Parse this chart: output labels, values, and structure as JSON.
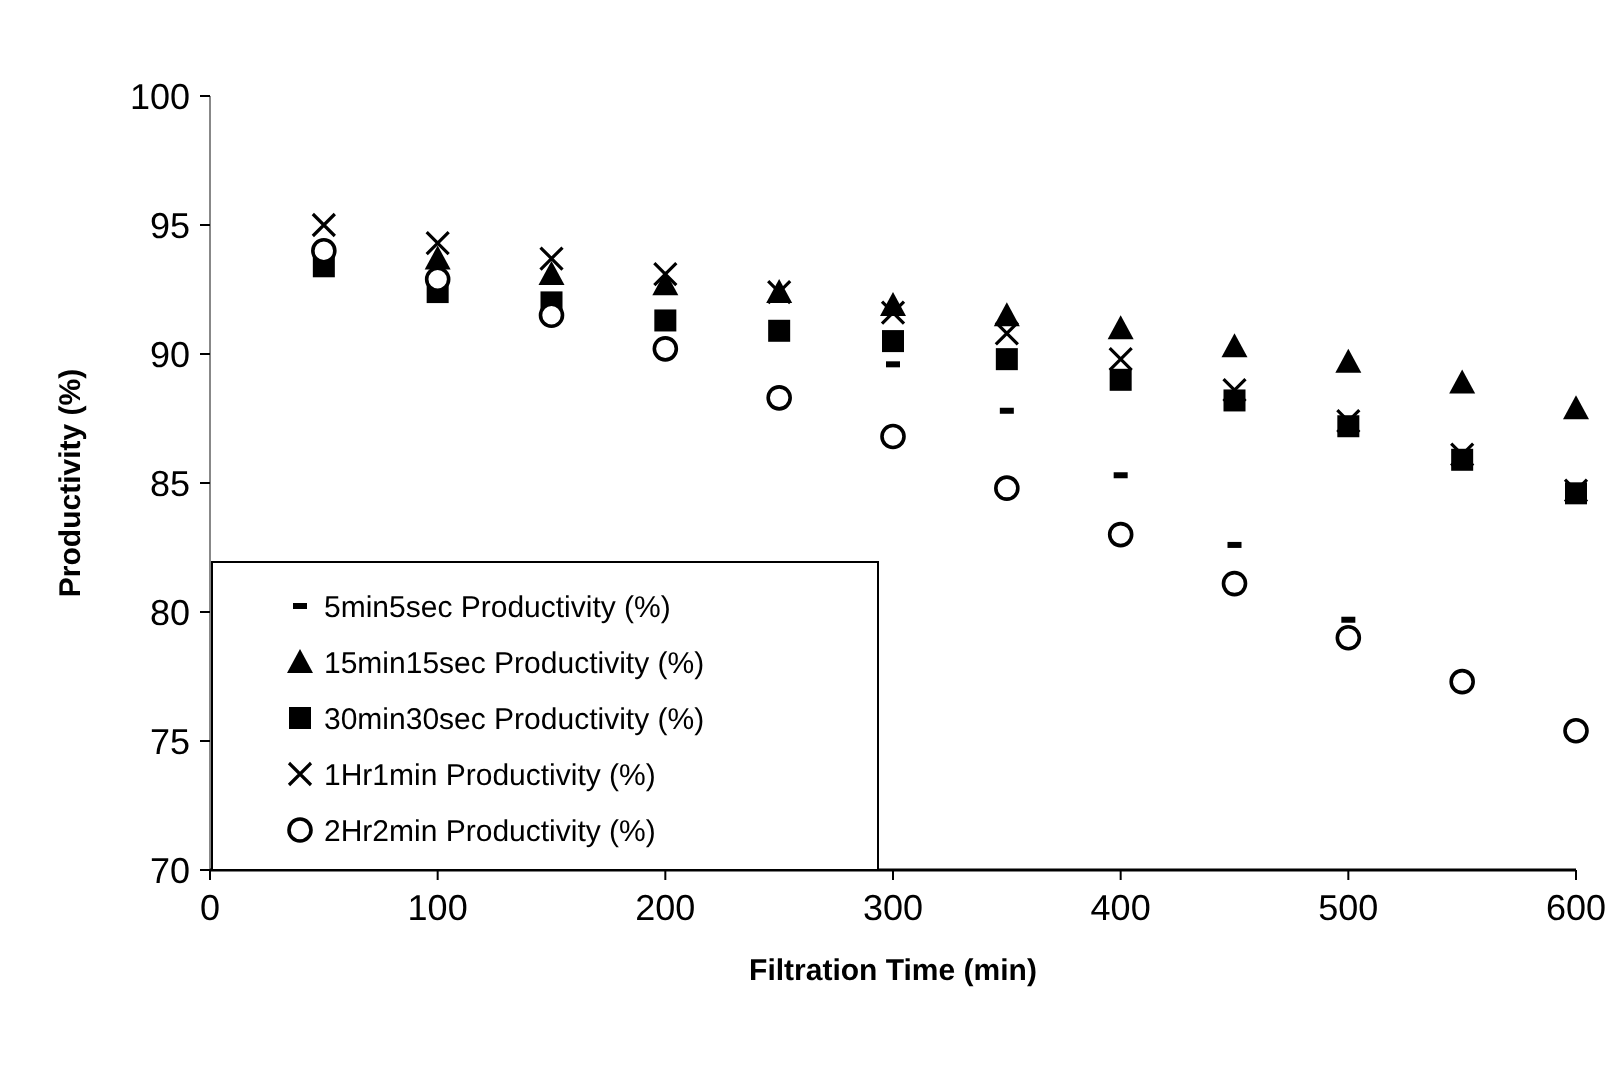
{
  "chart_data": {
    "type": "scatter",
    "xlabel": "Filtration Time (min)",
    "ylabel": "Productivity (%)",
    "x": [
      50,
      100,
      150,
      200,
      250,
      300,
      350,
      400,
      450,
      500,
      550,
      600
    ],
    "series": [
      {
        "name": "5min5sec Productivity (%)",
        "color": "#000000",
        "values": [
          null,
          null,
          null,
          null,
          null,
          89.6,
          87.8,
          85.3,
          82.6,
          79.7,
          null,
          null
        ]
      },
      {
        "name": "15min15sec Productivity (%)",
        "color": "#000000",
        "marker": "triangle",
        "values": [
          null,
          93.7,
          93.1,
          92.7,
          92.4,
          91.9,
          91.5,
          91.0,
          90.3,
          89.7,
          88.9,
          87.9
        ]
      },
      {
        "name": "30min30sec Productivity (%)",
        "color": "#000000",
        "marker": "square",
        "values": [
          93.4,
          92.4,
          92.0,
          91.3,
          90.9,
          90.5,
          89.8,
          89.0,
          88.2,
          87.2,
          85.9,
          84.6
        ]
      },
      {
        "name": "1Hr1min Productivity (%)",
        "color": "#000000",
        "marker": "cross",
        "values": [
          95.0,
          94.3,
          93.7,
          93.1,
          92.4,
          91.6,
          90.8,
          89.8,
          88.6,
          87.4,
          86.1,
          84.7
        ]
      },
      {
        "name": "2Hr2min Productivity (%)",
        "color": "#000000",
        "marker": "circle",
        "values": [
          94.0,
          92.9,
          91.5,
          90.2,
          88.3,
          86.8,
          84.8,
          83.0,
          81.1,
          79.0,
          77.3,
          75.4
        ]
      }
    ],
    "xlim": [
      0,
      600
    ],
    "xticks": [
      0,
      100,
      200,
      300,
      400,
      500,
      600
    ],
    "ylim": [
      70,
      100
    ],
    "yticks": [
      70,
      75,
      80,
      85,
      90,
      95,
      100
    ],
    "grid": false,
    "legend": "bottom left"
  }
}
